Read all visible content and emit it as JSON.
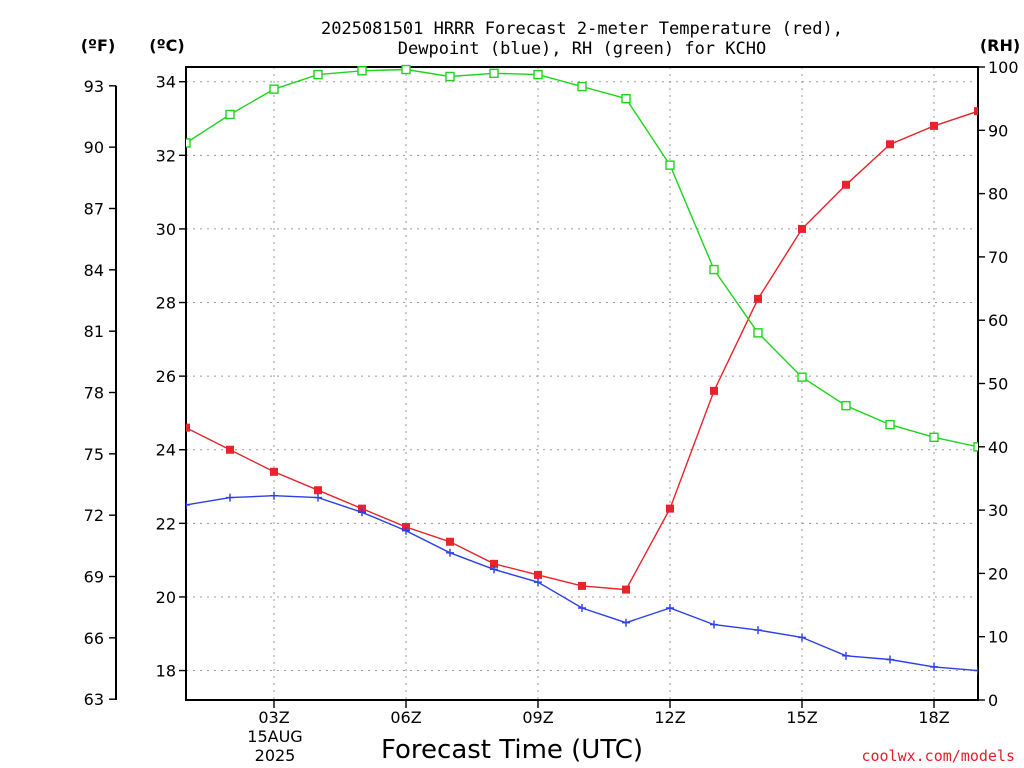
{
  "title_line1": "2025081501 HRRR Forecast 2-meter Temperature (red),",
  "title_line2": "Dewpoint (blue), RH (green) for KCHO",
  "unit_f": "(ºF)",
  "unit_c": "(ºC)",
  "unit_rh": "(RH)",
  "date_line1": "15AUG",
  "date_line2": "2025",
  "credit": "coolwx.com/models",
  "chart_data": {
    "type": "line",
    "xlabel": "Forecast Time (UTC)",
    "x": [
      1,
      2,
      3,
      4,
      5,
      6,
      7,
      8,
      9,
      10,
      11,
      12,
      13,
      14,
      15,
      16,
      17,
      18,
      19
    ],
    "xlim": [
      1,
      19
    ],
    "x_ticks": [
      3,
      6,
      9,
      12,
      15,
      18
    ],
    "x_tick_labels": [
      "03Z",
      "06Z",
      "09Z",
      "12Z",
      "15Z",
      "18Z"
    ],
    "left_axis_c": {
      "label": "(ºC)",
      "lim": [
        17.2,
        34.4
      ],
      "ticks": [
        18,
        20,
        22,
        24,
        26,
        28,
        30,
        32,
        34
      ]
    },
    "left_axis_f": {
      "label": "(ºF)",
      "ticks": [
        63,
        66,
        69,
        72,
        75,
        78,
        81,
        84,
        87,
        90,
        93
      ]
    },
    "right_axis_rh": {
      "label": "(RH)",
      "lim": [
        0,
        100
      ],
      "ticks": [
        0,
        10,
        20,
        30,
        40,
        50,
        60,
        70,
        80,
        90,
        100
      ]
    },
    "grid": true,
    "series": [
      {
        "color": "#e8232b",
        "axis": "celsius",
        "marker": "filled-square",
        "values": [
          24.6,
          24.0,
          23.4,
          22.9,
          22.4,
          21.9,
          21.5,
          20.9,
          20.6,
          20.3,
          20.2,
          22.4,
          25.6,
          28.1,
          30.0,
          31.2,
          32.3,
          32.8,
          33.2
        ]
      },
      {
        "color": "#2b3fe8",
        "axis": "celsius",
        "marker": "plus",
        "values": [
          22.5,
          22.7,
          22.75,
          22.7,
          22.3,
          21.8,
          21.2,
          20.75,
          20.4,
          19.7,
          19.3,
          19.7,
          19.25,
          19.1,
          18.9,
          18.4,
          18.3,
          18.1,
          18.0
        ]
      },
      {
        "color": "#1ed41e",
        "axis": "rh",
        "marker": "open-square",
        "values": [
          88,
          92.5,
          96.5,
          98.8,
          99.4,
          99.6,
          98.5,
          99,
          98.8,
          96.9,
          95,
          84.5,
          68,
          58,
          51,
          46.5,
          43.5,
          41.5,
          40
        ]
      }
    ]
  }
}
